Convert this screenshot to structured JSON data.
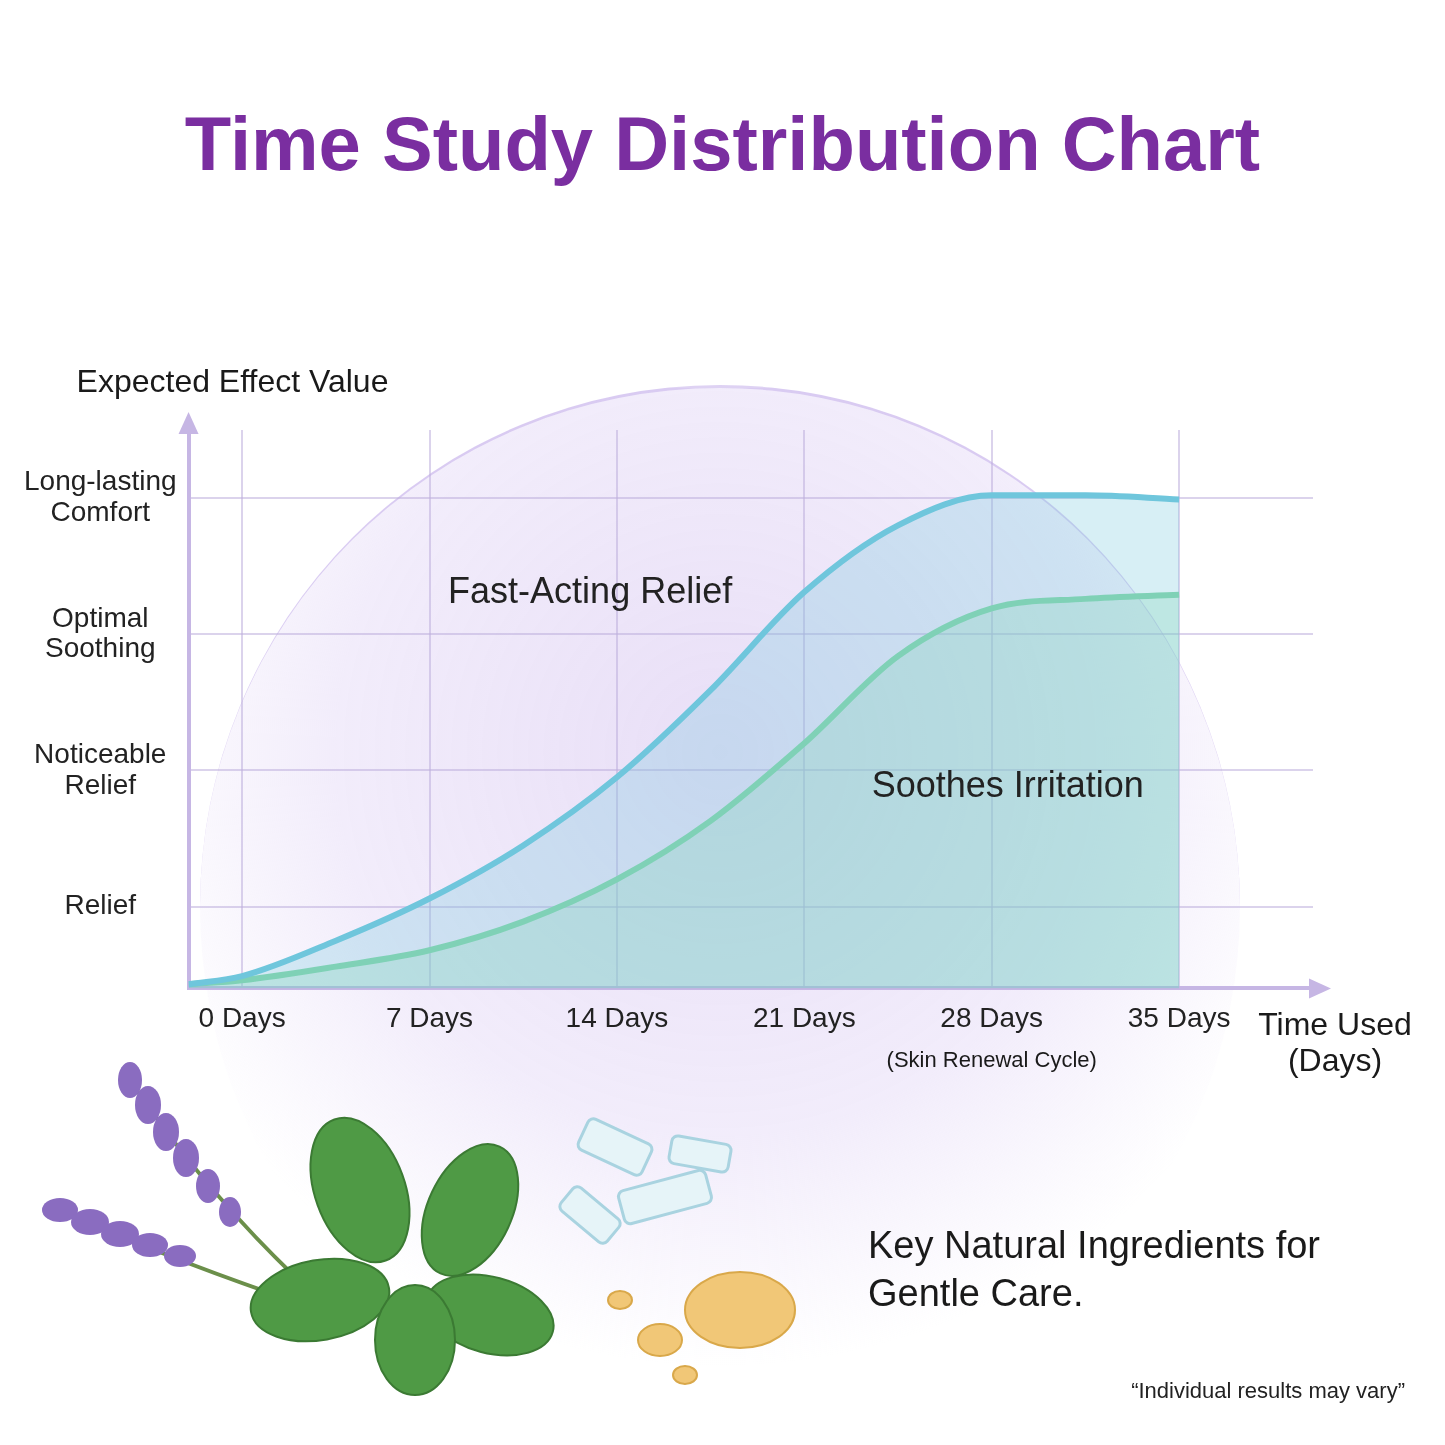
{
  "chart_data": {
    "type": "line",
    "title": "Time Study Distribution Chart",
    "y_label": "Expected Effect Value",
    "x_label": "Time Used (Days)",
    "x": [
      -2,
      0,
      3.5,
      7,
      10.5,
      14,
      17.5,
      21,
      24.5,
      28,
      31.5,
      35
    ],
    "series": [
      {
        "name": "Fast-Acting Relief",
        "color": "#6fc6dc",
        "label_x": 13,
        "label_y": 3.3,
        "values": [
          0.43,
          0.49,
          0.75,
          1.06,
          1.45,
          1.95,
          2.59,
          3.31,
          3.8,
          4.02,
          4.02,
          3.99
        ]
      },
      {
        "name": "Soothes Irritation",
        "color": "#86d6a8",
        "label_x": 28.6,
        "label_y": 1.88,
        "values": [
          0.43,
          0.46,
          0.56,
          0.68,
          0.89,
          1.2,
          1.63,
          2.2,
          2.84,
          3.19,
          3.26,
          3.29
        ]
      }
    ],
    "xlim": [
      -2,
      40
    ],
    "ylim": [
      0.4,
      4.5
    ],
    "xticks": [
      {
        "value": 0,
        "label": "0 Days"
      },
      {
        "value": 7,
        "label": "7 Days"
      },
      {
        "value": 14,
        "label": "14 Days"
      },
      {
        "value": 21,
        "label": "21 Days"
      },
      {
        "value": 28,
        "label": "28 Days"
      },
      {
        "value": 35,
        "label": "35 Days"
      }
    ],
    "x_tick_notes": [
      {
        "value": 28,
        "text": "(Skin Renewal Cycle)"
      }
    ],
    "yticks": [
      {
        "value": 1,
        "label": "Relief"
      },
      {
        "value": 2,
        "label": "Noticeable Relief"
      },
      {
        "value": 3,
        "label": "Optimal Soothing"
      },
      {
        "value": 4,
        "label": "Long-lasting Comfort"
      }
    ],
    "grid": true,
    "footer": "Key Natural Ingredients for Gentle Care.",
    "disclaimer": "“Individual results may vary”"
  }
}
